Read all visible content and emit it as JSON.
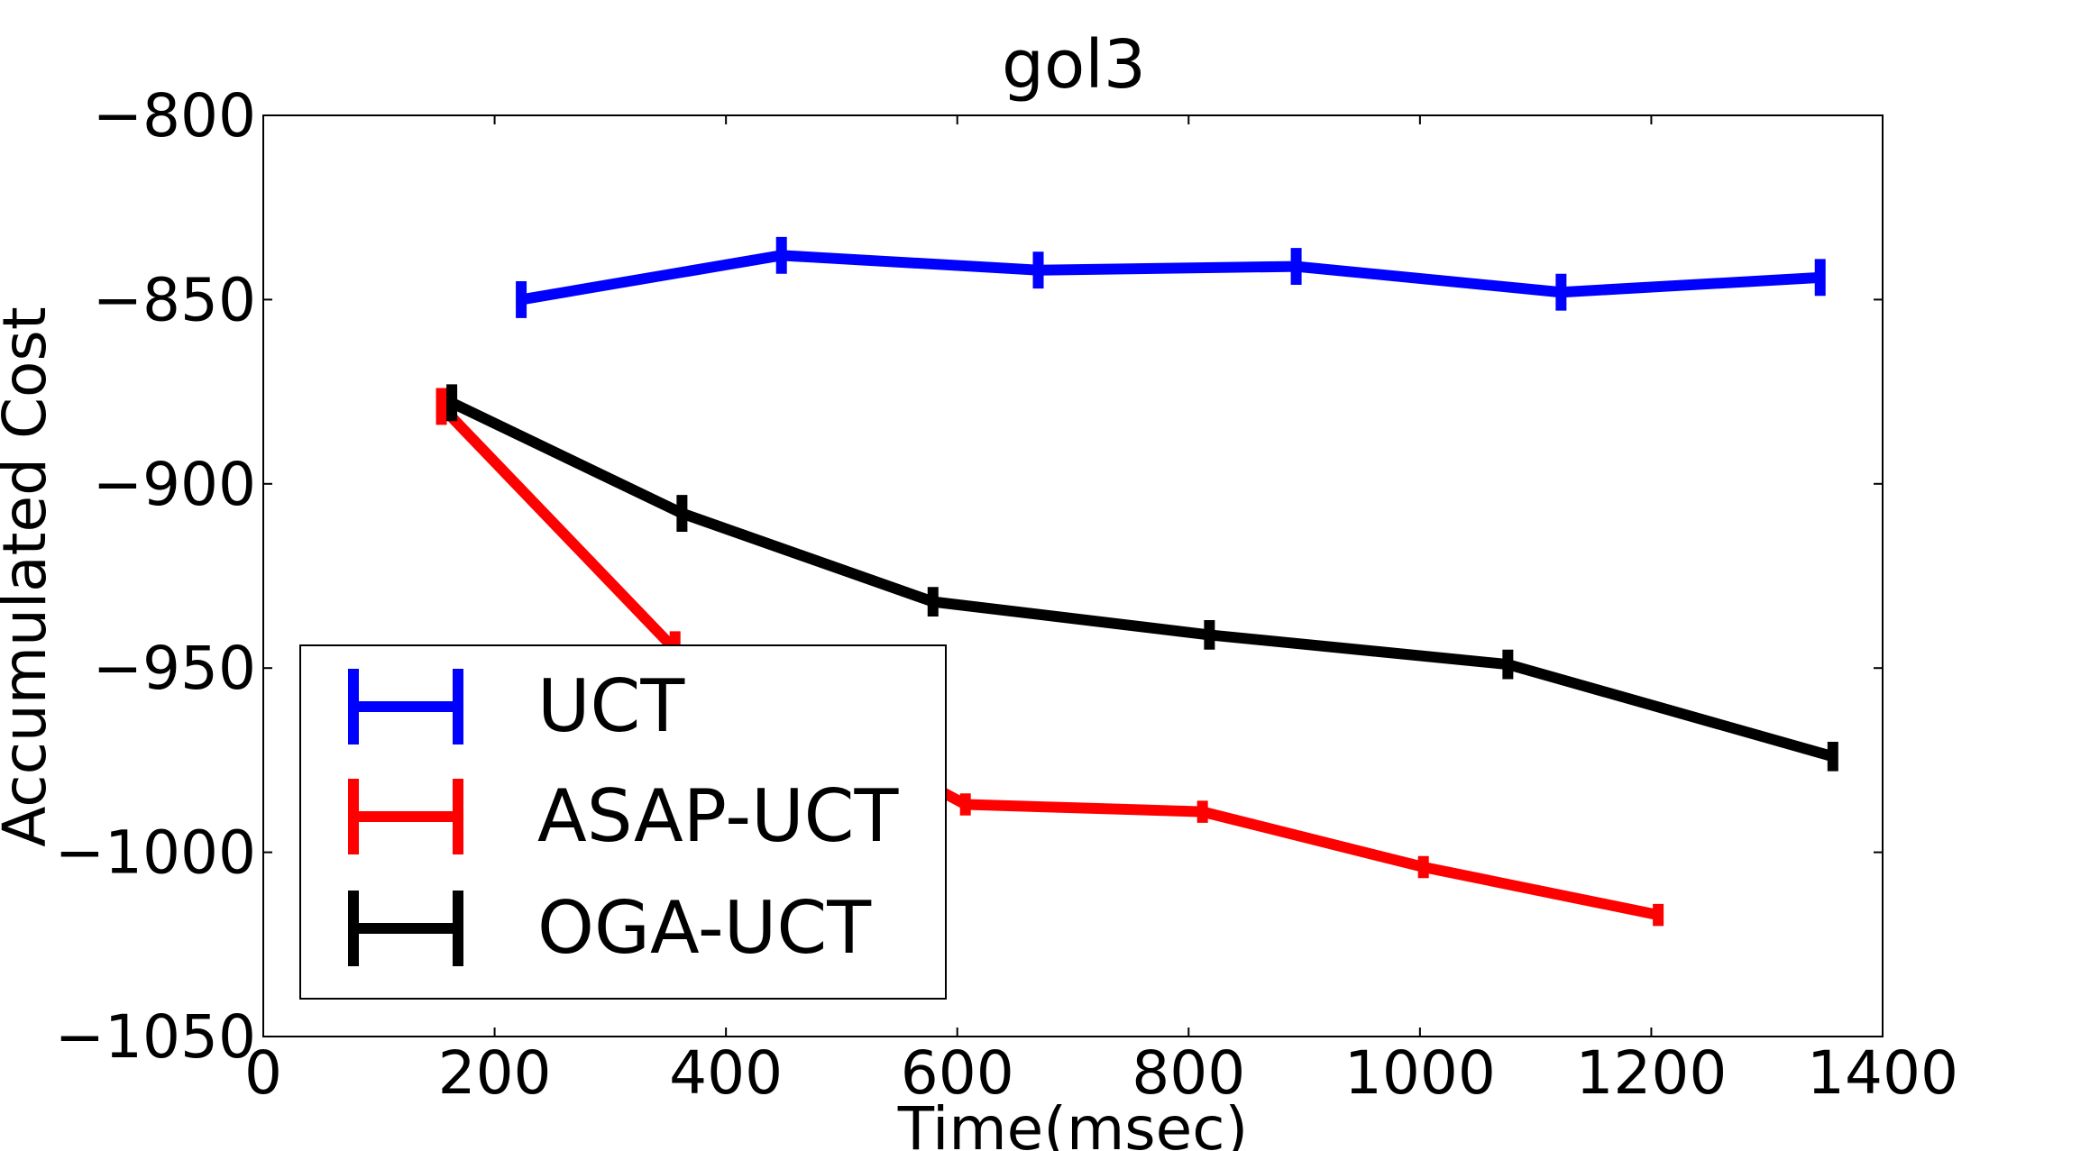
{
  "chart_data": {
    "type": "line",
    "title": "gol3",
    "xlabel": "Time(msec)",
    "ylabel": "Accumulated Cost",
    "xlim": [
      0,
      1400
    ],
    "ylim": [
      -1050,
      -800
    ],
    "xticks": [
      0,
      200,
      400,
      600,
      800,
      1000,
      1200,
      1400
    ],
    "yticks": [
      -800,
      -850,
      -900,
      -950,
      -1000,
      -1050
    ],
    "xtick_labels": [
      "0",
      "200",
      "400",
      "600",
      "800",
      "1000",
      "1200",
      "1400"
    ],
    "ytick_labels": [
      "−800",
      "−850",
      "−900",
      "−950",
      "−1000",
      "−1050"
    ],
    "grid": false,
    "legend_position": "lower-left",
    "series": [
      {
        "name": "UCT",
        "color": "#0000ff",
        "x": [
          223,
          448,
          670,
          893,
          1122,
          1346
        ],
        "y": [
          -850,
          -838,
          -842,
          -841,
          -848,
          -844
        ],
        "err": [
          5,
          5,
          5,
          5,
          5,
          5
        ]
      },
      {
        "name": "ASAP-UCT",
        "color": "#ff0000",
        "x": [
          154,
          356,
          607,
          812,
          1003,
          1206
        ],
        "y": [
          -879,
          -945,
          -987,
          -989,
          -1004,
          -1017
        ],
        "err": [
          5,
          5,
          3,
          3,
          3,
          3
        ]
      },
      {
        "name": "OGA-UCT",
        "color": "#000000",
        "x": [
          163,
          362,
          579,
          818,
          1076,
          1357
        ],
        "y": [
          -878,
          -908,
          -932,
          -941,
          -949,
          -974
        ],
        "err": [
          5,
          5,
          4,
          4,
          4,
          4
        ]
      }
    ]
  }
}
